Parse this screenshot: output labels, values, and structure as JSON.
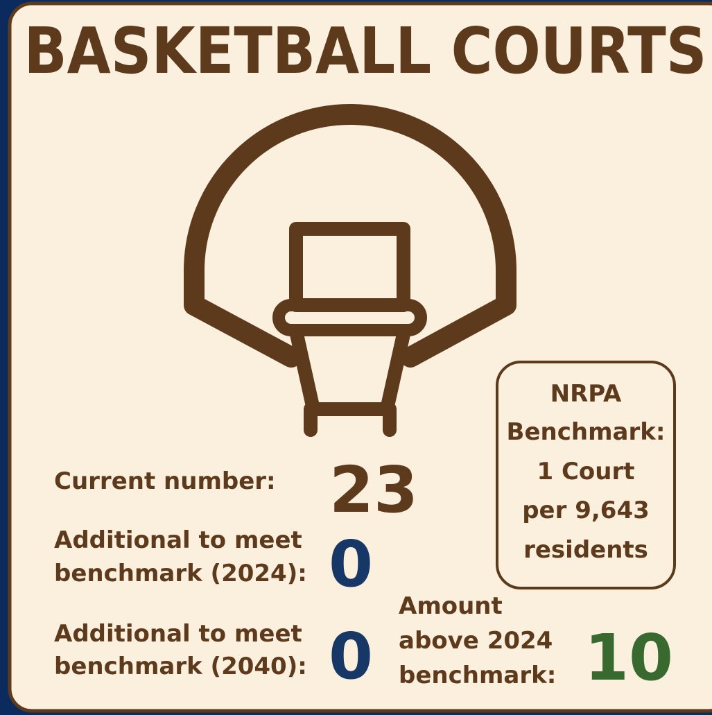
{
  "title": "BASKETBALL COURTS",
  "stats": [
    {
      "label": [
        "Current number:"
      ],
      "value": 23
    },
    {
      "label": [
        "Additional to meet",
        "benchmark (2024):"
      ],
      "value": 0
    },
    {
      "label": [
        "Additional to meet",
        "benchmark (2040):"
      ],
      "value": 0
    },
    {
      "label": [
        "Amount",
        "above 2024",
        "benchmark:"
      ],
      "value": 10
    }
  ],
  "benchmark": [
    "NRPA",
    "Benchmark:",
    "1 Court",
    "per 9,643",
    "residents"
  ]
}
